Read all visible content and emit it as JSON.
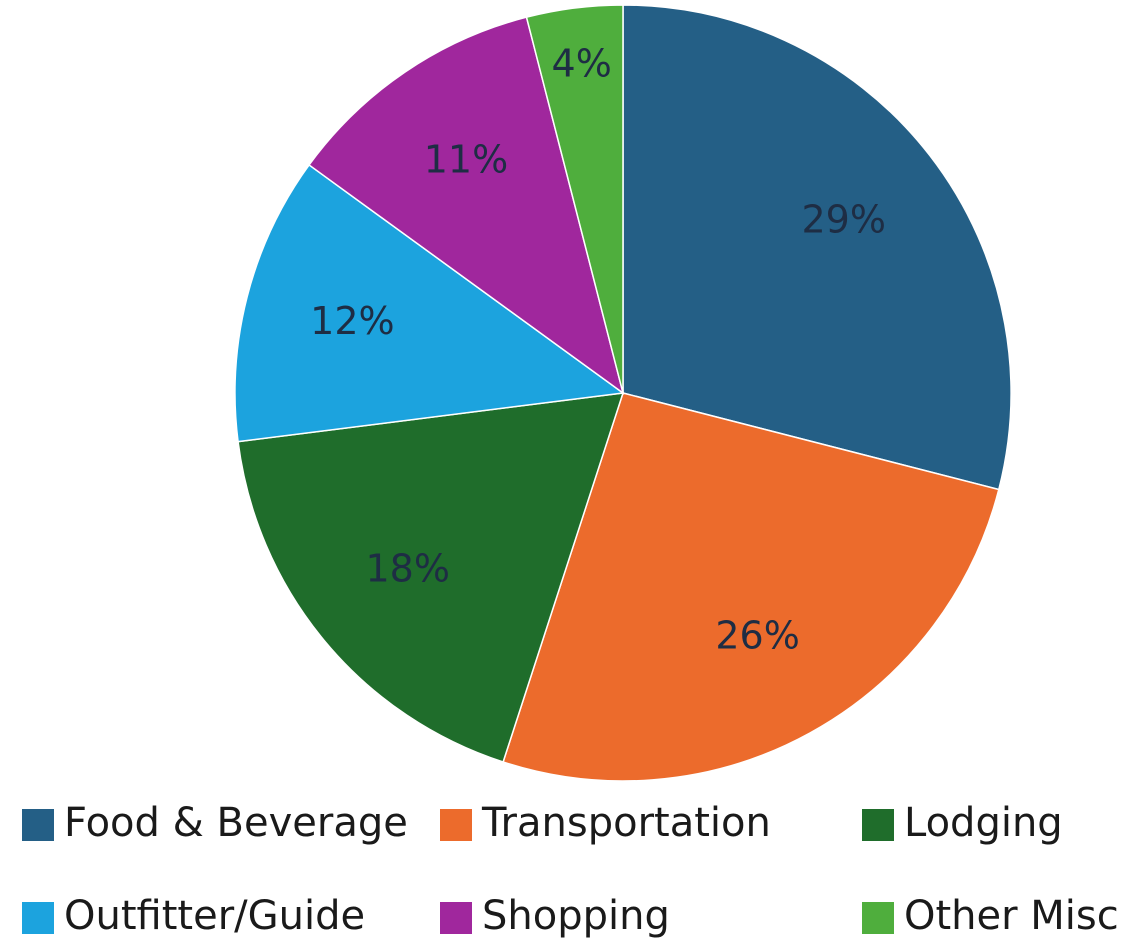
{
  "chart_data": {
    "type": "pie",
    "categories": [
      "Food & Beverage",
      "Transportation",
      "Lodging",
      "Outfitter/Guide",
      "Shopping",
      "Other Misc"
    ],
    "values": [
      29,
      26,
      18,
      12,
      11,
      4
    ],
    "value_labels": [
      "29%",
      "26%",
      "18%",
      "12%",
      "11%",
      "4%"
    ],
    "colors": [
      "#245f86",
      "#ec6b2c",
      "#1f6d2b",
      "#1ca3de",
      "#a0279d",
      "#4fae3d"
    ],
    "legend": "bottom"
  }
}
